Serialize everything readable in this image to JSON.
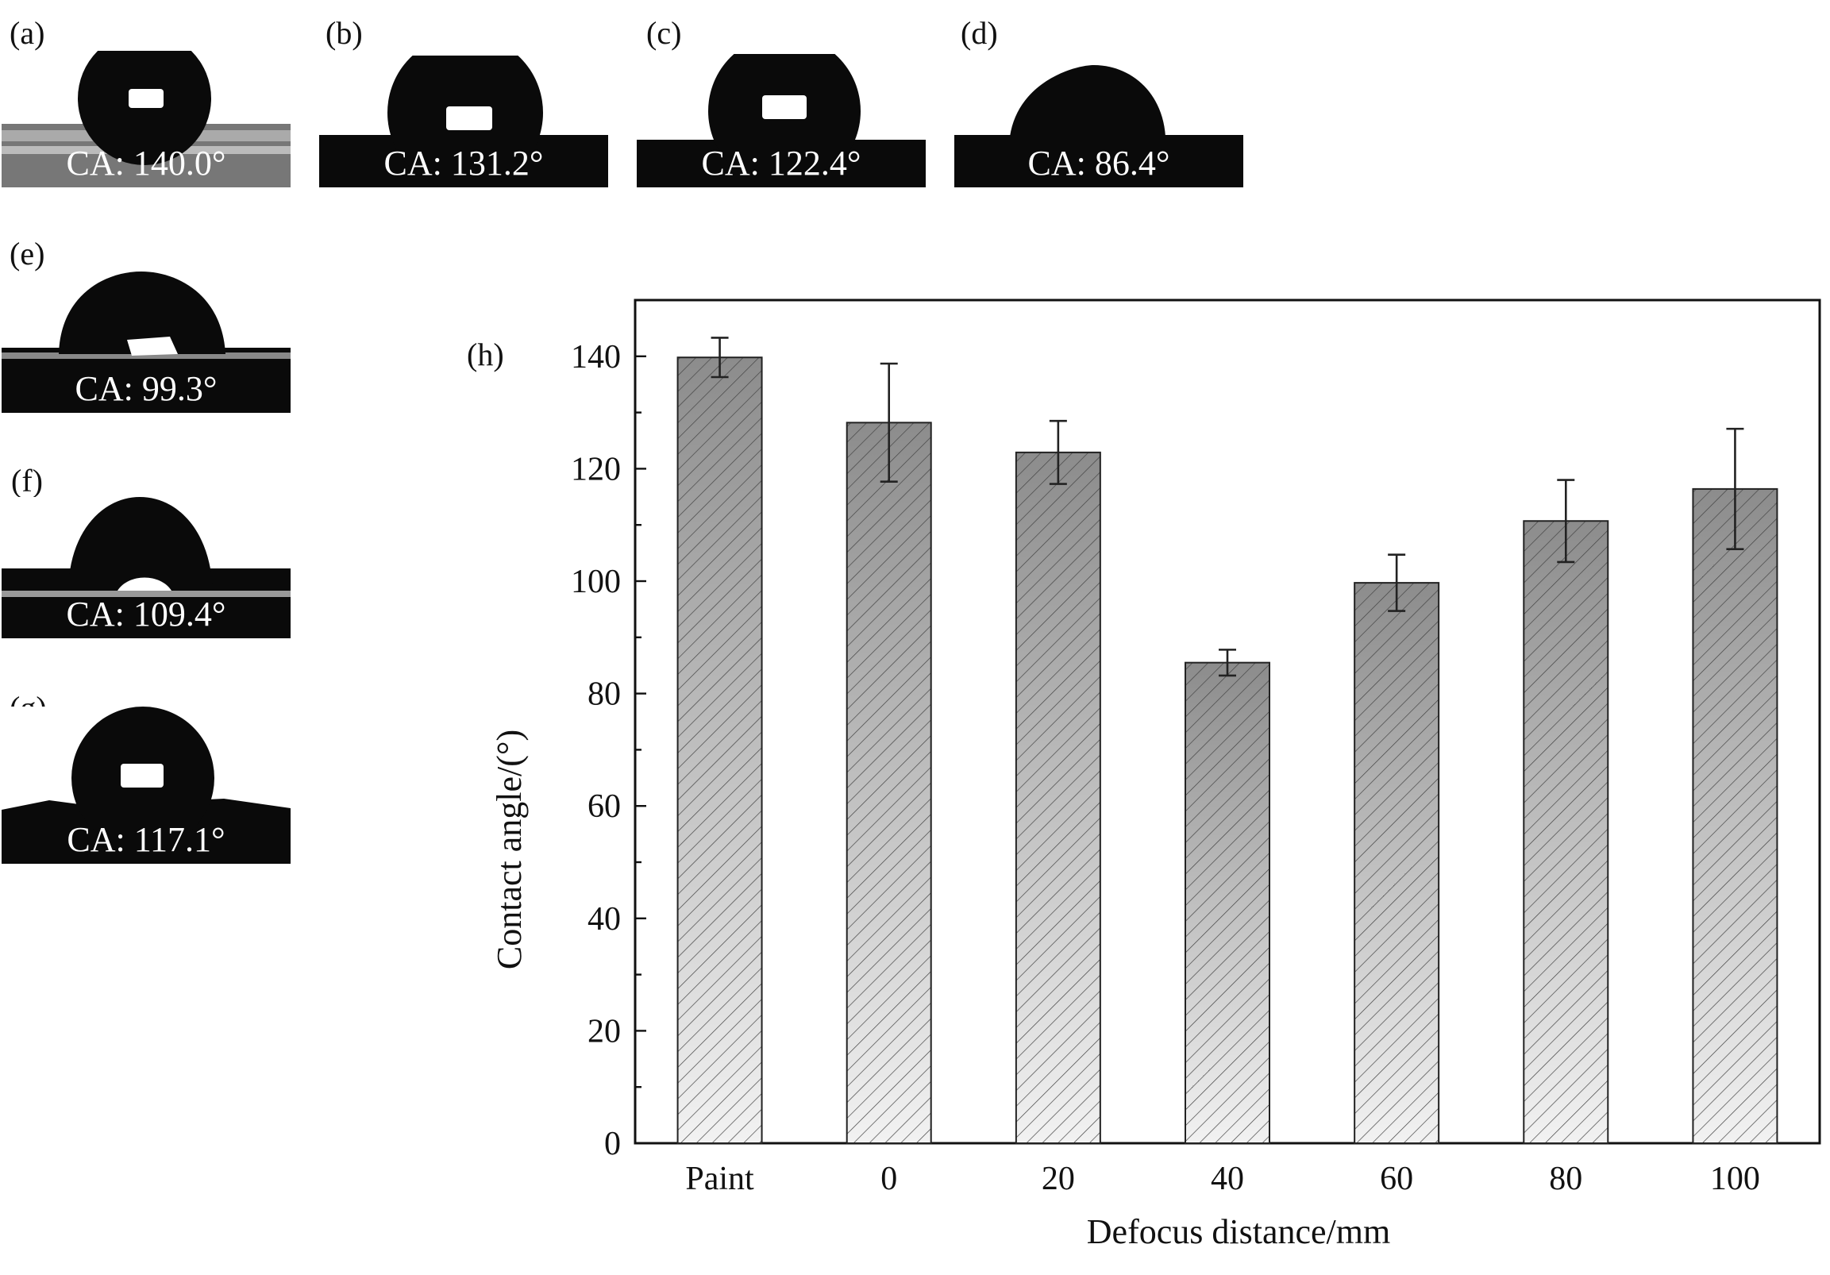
{
  "figure": {
    "panels": [
      {
        "label": "(a)",
        "ca": "CA: 140.0°",
        "shape": "sphere"
      },
      {
        "label": "(b)",
        "ca": "CA: 131.2°",
        "shape": "sphere"
      },
      {
        "label": "(c)",
        "ca": "CA: 122.4°",
        "shape": "sphere"
      },
      {
        "label": "(d)",
        "ca": "CA: 86.4°",
        "shape": "cap"
      },
      {
        "label": "(e)",
        "ca": "CA: 99.3°",
        "shape": "dome"
      },
      {
        "label": "(f)",
        "ca": "CA: 109.4°",
        "shape": "dome"
      },
      {
        "label": "(g)",
        "ca": "CA: 117.1°",
        "shape": "sphere"
      }
    ],
    "chart_label": "(h)"
  },
  "chart_data": {
    "type": "bar",
    "categories": [
      "Paint",
      "0",
      "20",
      "40",
      "60",
      "80",
      "100"
    ],
    "values": [
      139.8,
      128.2,
      122.9,
      85.5,
      99.7,
      110.7,
      116.4
    ],
    "errors": [
      3.5,
      10.5,
      5.6,
      2.3,
      5.0,
      7.3,
      10.7
    ],
    "xlabel": "Defocus distance/mm",
    "ylabel": "Contact angle/(°)",
    "ylim": [
      0,
      150
    ],
    "yticks": [
      0,
      20,
      40,
      60,
      80,
      100,
      120,
      140
    ],
    "grid": false,
    "bar_fill": "hatched gradient",
    "colors": {
      "bar_dark": "#8c8c8c",
      "bar_light": "#f2f2f2",
      "hatch": "#444444",
      "axis": "#111111"
    }
  }
}
